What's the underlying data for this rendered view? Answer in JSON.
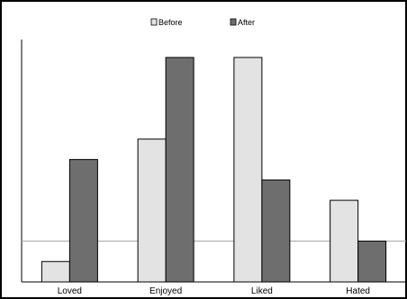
{
  "chart_data": {
    "type": "bar",
    "title": "",
    "xlabel": "",
    "ylabel": "",
    "categories": [
      "Loved",
      "Enjoyed",
      "Liked",
      "Hated"
    ],
    "series": [
      {
        "name": "Before",
        "values": [
          1,
          7,
          11,
          4
        ],
        "color": "#e3e3e3"
      },
      {
        "name": "After",
        "values": [
          6,
          11,
          5,
          2
        ],
        "color": "#6e6e6e"
      }
    ],
    "ylim": [
      0,
      11.3
    ],
    "reference_line": 2,
    "grid": false,
    "legend_position": "top-center",
    "colors": {
      "frame": "#000000",
      "bar_outline": "#000000",
      "reference_line": "#a6a6a6"
    }
  }
}
